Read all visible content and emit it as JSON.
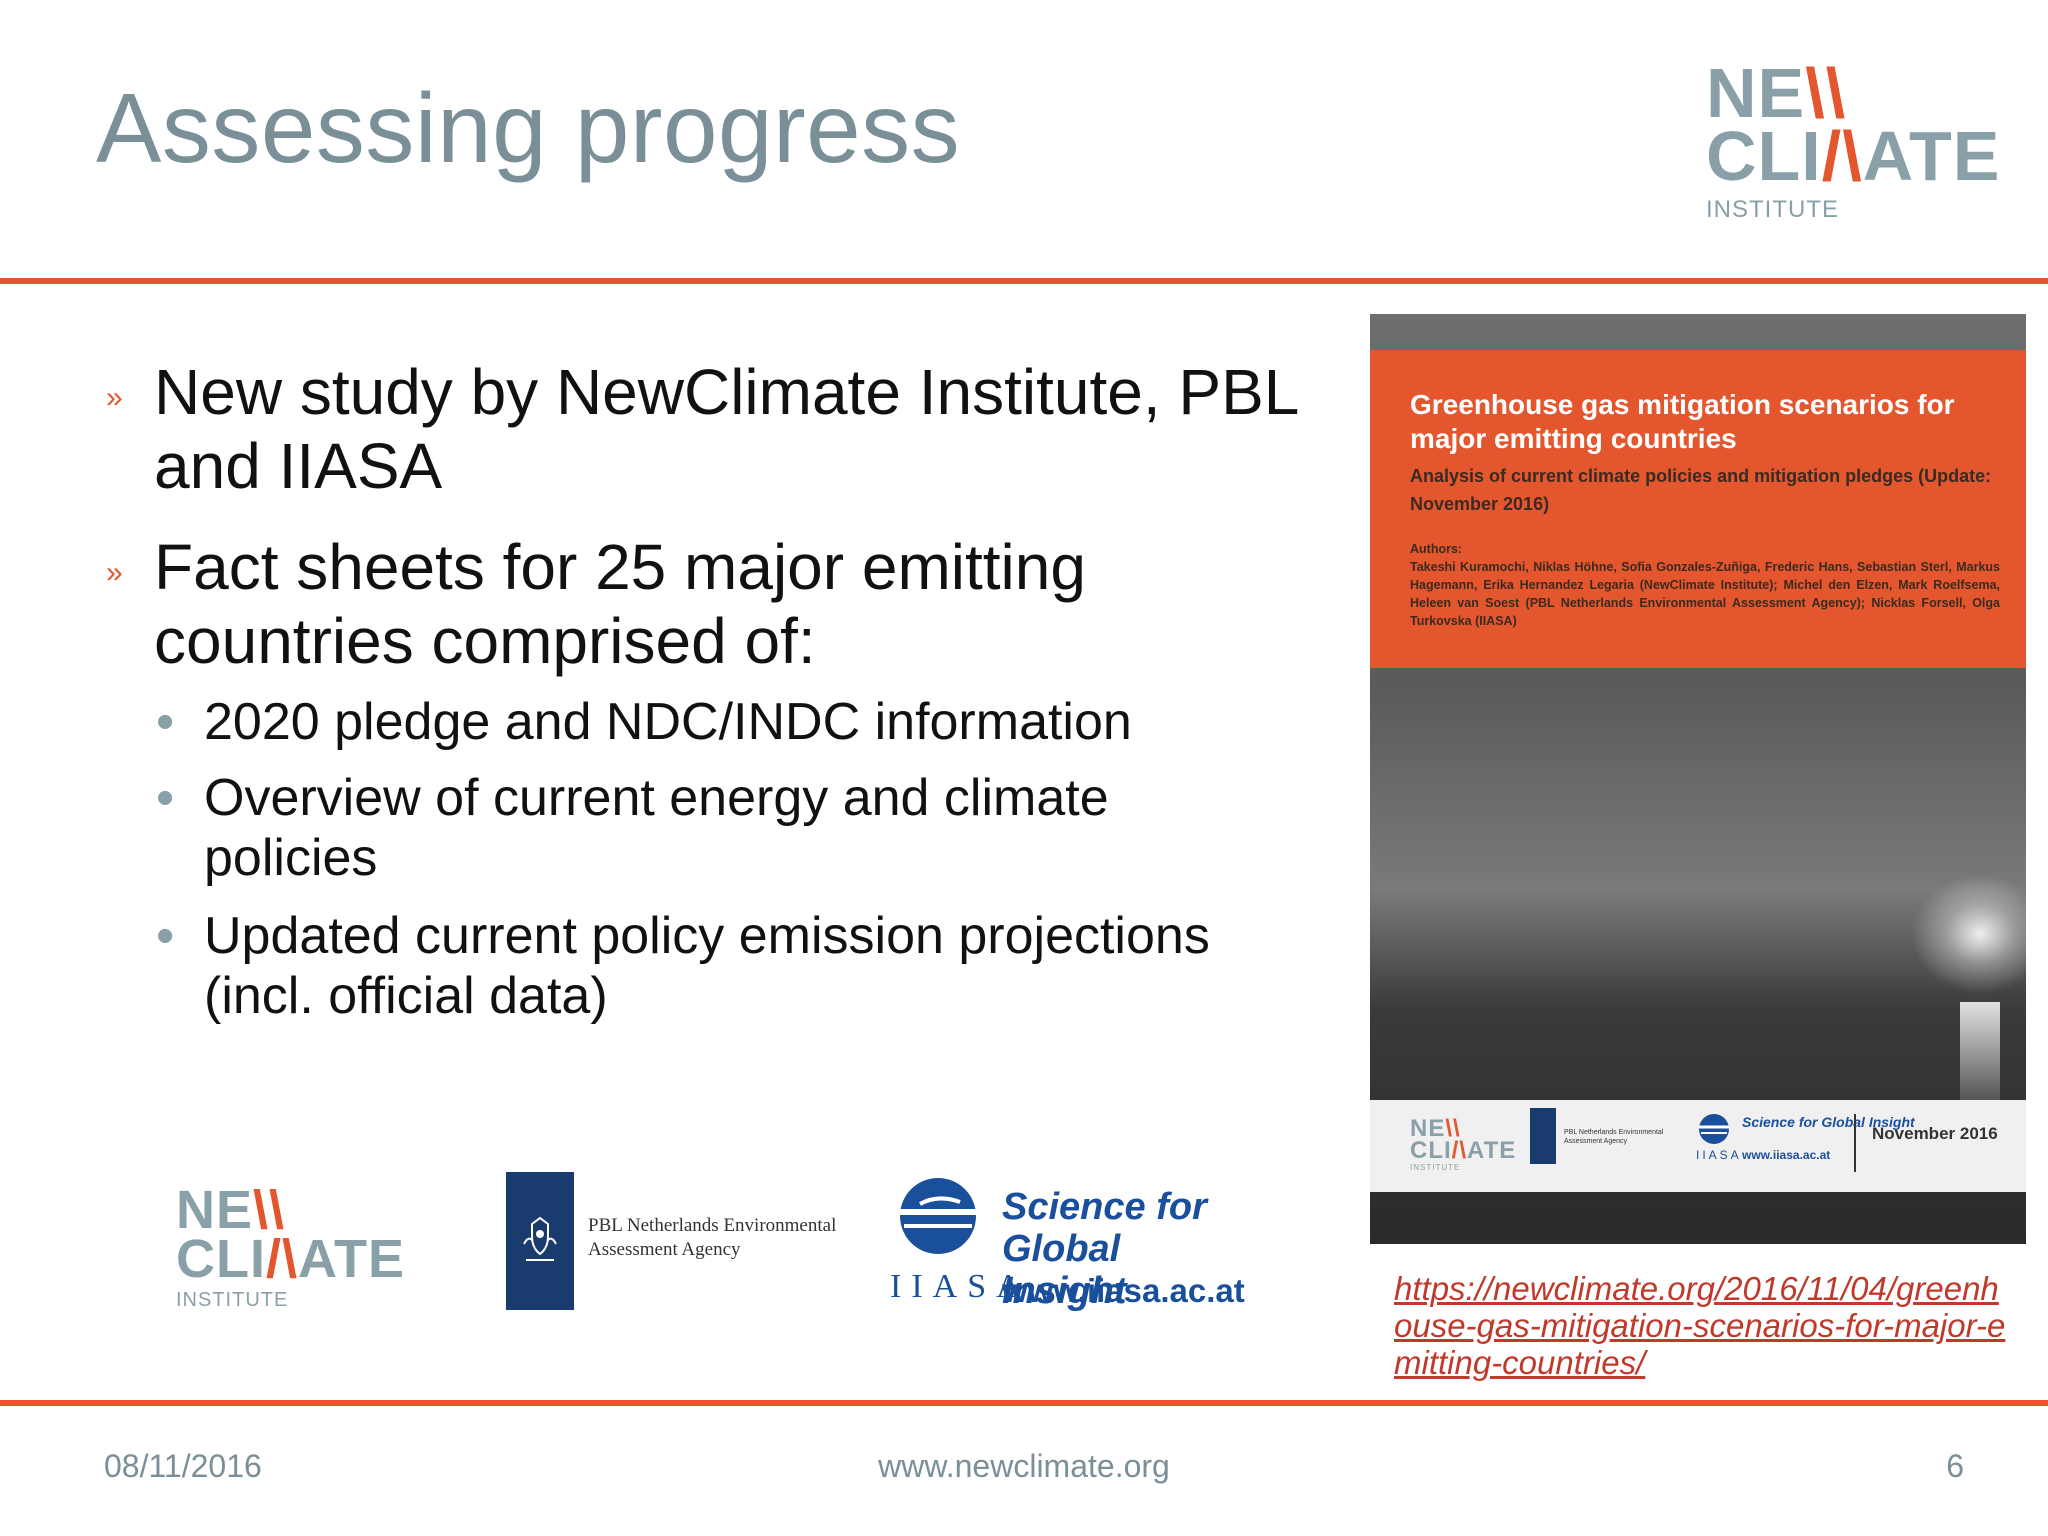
{
  "slide": {
    "title": "Assessing progress"
  },
  "logo_top": {
    "line1_a": "NE",
    "line1_b": "\\\\",
    "line2_a": "CLI",
    "line2_b": "/\\",
    "line2_c": "ATE",
    "institute": "INSTITUTE"
  },
  "bullets": [
    {
      "text": "New study by NewClimate Institute, PBL and IIASA"
    },
    {
      "text": "Fact sheets for 25 major emitting countries comprised of:"
    }
  ],
  "subbullets": [
    {
      "text": "2020 pledge and NDC/INDC information"
    },
    {
      "text": "Overview of current energy and climate policies"
    },
    {
      "text": "Updated current policy emission projections (incl. official data)"
    }
  ],
  "bullet_marker": "»",
  "subbullet_marker": "•",
  "partner_logos": {
    "pbl_text": "PBL Netherlands Environmental Assessment Agency",
    "iiasa_tagline": "Science for Global Insight",
    "iiasa_url": "www.iiasa.ac.at",
    "iiasa_letters": "IIASA"
  },
  "cover": {
    "title": "Greenhouse gas mitigation scenarios for major emitting countries",
    "subtitle": "Analysis of current climate policies and mitigation pledges (Update: November 2016)",
    "authors_label": "Authors:",
    "authors": "Takeshi Kuramochi, Niklas Höhne, Sofia Gonzales-Zuñiga, Frederic Hans, Sebastian Sterl, Markus Hagemann, Erika Hernandez Legaria (NewClimate Institute); Michel den Elzen, Mark Roelfsema, Heleen van Soest (PBL Netherlands Environmental Assessment Agency); Nicklas Forsell, Olga Turkovska (IIASA)",
    "strip_pbl_text": "PBL Netherlands Environmental Assessment Agency",
    "strip_iiasa_tagline": "Science for Global Insight",
    "strip_iiasa_url": "www.iiasa.ac.at",
    "strip_iiasa_letters": "IIASA",
    "date": "November 2016"
  },
  "link": {
    "text": "https://newclimate.org/2016/11/04/greenhouse-gas-mitigation-scenarios-for-major-emitting-countries/"
  },
  "footer": {
    "date": "08/11/2016",
    "url": "www.newclimate.org",
    "page": "6"
  },
  "colors": {
    "accent": "#e4572e",
    "title_gray": "#7a8f98",
    "iiasa_blue": "#1a4f9c",
    "pbl_navy": "#1a3b6e"
  }
}
